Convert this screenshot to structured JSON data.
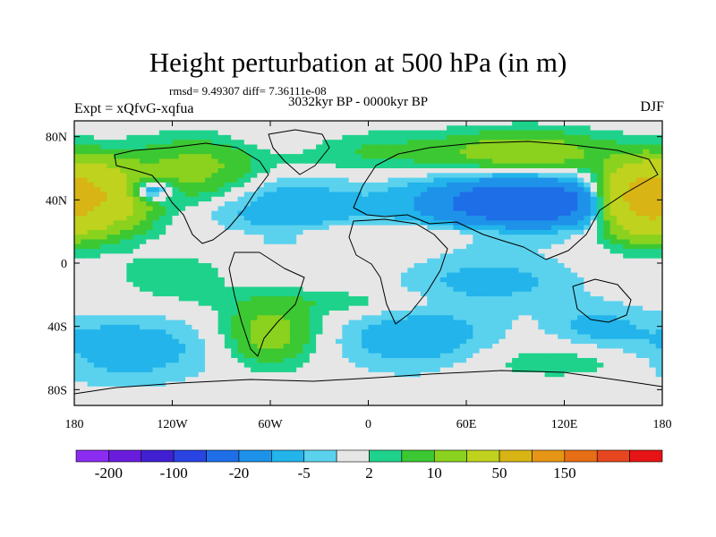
{
  "title": "Height perturbation at 500 hPa (in m)",
  "stats": "rmsd= 9.49307 diff= 7.36111e-08",
  "period": "3032kyr BP - 0000kyr BP",
  "experiment": "Expt = xQfvG-xqfua",
  "season": "DJF",
  "map": {
    "projection": "cylindrical equidistant",
    "lon_range": [
      -180,
      180
    ],
    "lat_range": [
      -90,
      90
    ],
    "lon_ticks": [
      {
        "value": -180,
        "label": "180"
      },
      {
        "value": -120,
        "label": "120W"
      },
      {
        "value": -60,
        "label": "60W"
      },
      {
        "value": 0,
        "label": "0"
      },
      {
        "value": 60,
        "label": "60E"
      },
      {
        "value": 120,
        "label": "120E"
      },
      {
        "value": 180,
        "label": "180"
      }
    ],
    "lat_ticks": [
      {
        "value": 80,
        "label": "80N"
      },
      {
        "value": 40,
        "label": "40N"
      },
      {
        "value": 0,
        "label": "0"
      },
      {
        "value": -40,
        "label": "40S"
      },
      {
        "value": -80,
        "label": "80S"
      }
    ]
  },
  "colorbar": {
    "colors": [
      "#8c2cf0",
      "#6a1cdc",
      "#4020d2",
      "#2a44e4",
      "#1e6ee8",
      "#1e92e8",
      "#22b4ea",
      "#5ad2ee",
      "#e6e6e6",
      "#1ed28c",
      "#3cc832",
      "#8ad21e",
      "#bed21e",
      "#d8b414",
      "#e69614",
      "#e66e14",
      "#e6461e",
      "#e61414"
    ],
    "labels": [
      {
        "boundary": 1,
        "text": "-200"
      },
      {
        "boundary": 3,
        "text": "-100"
      },
      {
        "boundary": 5,
        "text": "-20"
      },
      {
        "boundary": 7,
        "text": "-5"
      },
      {
        "boundary": 9,
        "text": "2"
      },
      {
        "boundary": 11,
        "text": "10"
      },
      {
        "boundary": 13,
        "text": "50"
      },
      {
        "boundary": 15,
        "text": "150"
      }
    ]
  },
  "anomaly_centers": [
    {
      "lon": -170,
      "lat": 42,
      "sx": 22,
      "sy": 14,
      "amp": 50
    },
    {
      "lon": 165,
      "lat": 40,
      "sx": 16,
      "sy": 14,
      "amp": 50
    },
    {
      "lon": -105,
      "lat": 58,
      "sx": 26,
      "sy": 14,
      "amp": 12
    },
    {
      "lon": -135,
      "lat": 46,
      "sx": 10,
      "sy": 5,
      "amp": -22
    },
    {
      "lon": -50,
      "lat": 35,
      "sx": 35,
      "sy": 14,
      "amp": -9
    },
    {
      "lon": 20,
      "lat": 70,
      "sx": 70,
      "sy": 9,
      "amp": 6
    },
    {
      "lon": 100,
      "lat": 70,
      "sx": 30,
      "sy": 9,
      "amp": 14
    },
    {
      "lon": 95,
      "lat": 38,
      "sx": 42,
      "sy": 11,
      "amp": -35
    },
    {
      "lon": -55,
      "lat": 78,
      "sx": 22,
      "sy": 8,
      "amp": -4
    },
    {
      "lon": 30,
      "lat": 20,
      "sx": 80,
      "sy": 4,
      "amp": 4
    },
    {
      "lon": -60,
      "lat": -45,
      "sx": 18,
      "sy": 13,
      "amp": 14
    },
    {
      "lon": -150,
      "lat": -55,
      "sx": 35,
      "sy": 14,
      "amp": -9
    },
    {
      "lon": 30,
      "lat": -48,
      "sx": 32,
      "sy": 14,
      "amp": -9
    },
    {
      "lon": 75,
      "lat": -12,
      "sx": 35,
      "sy": 12,
      "amp": -7
    },
    {
      "lon": 140,
      "lat": -40,
      "sx": 20,
      "sy": 10,
      "amp": -6
    },
    {
      "lon": -120,
      "lat": -8,
      "sx": 25,
      "sy": 10,
      "amp": 4
    },
    {
      "lon": -20,
      "lat": -25,
      "sx": 60,
      "sy": 6,
      "amp": 4
    },
    {
      "lon": 120,
      "lat": -62,
      "sx": 50,
      "sy": 8,
      "amp": 4
    }
  ]
}
